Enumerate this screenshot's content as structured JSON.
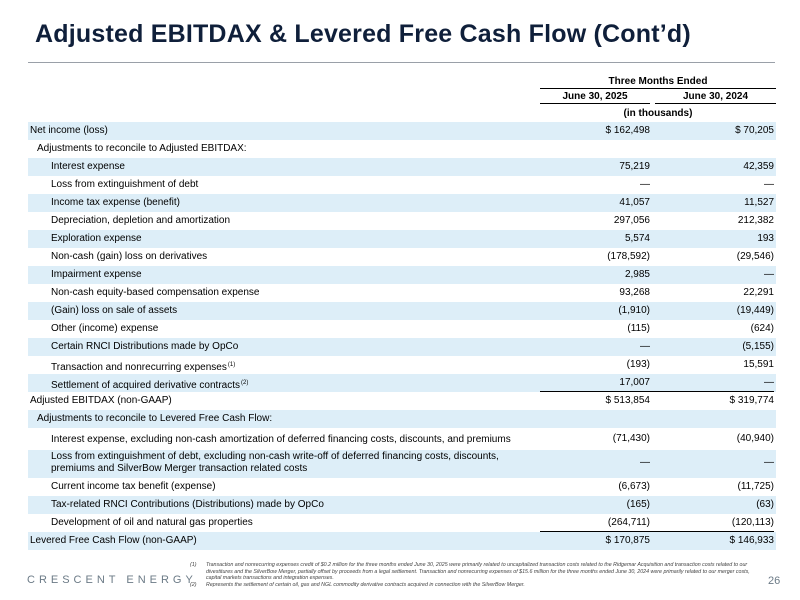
{
  "title": "Adjusted EBITDAX & Levered Free Cash Flow (Cont’d)",
  "header": {
    "period": "Three Months Ended",
    "col1": "June 30, 2025",
    "col2": "June 30, 2024",
    "units": "(in thousands)"
  },
  "rows": [
    {
      "label": "Net income (loss)",
      "v1": "$ 162,498",
      "v2": "$  70,205"
    },
    {
      "label": "Adjustments to reconcile to Adjusted EBITDAX:",
      "v1": "",
      "v2": ""
    },
    {
      "label": "Interest expense",
      "v1": "75,219",
      "v2": "42,359"
    },
    {
      "label": "Loss from extinguishment of debt",
      "v1": "—",
      "v2": "—"
    },
    {
      "label": "Income tax expense (benefit)",
      "v1": "41,057",
      "v2": "11,527"
    },
    {
      "label": "Depreciation, depletion and amortization",
      "v1": "297,056",
      "v2": "212,382"
    },
    {
      "label": "Exploration expense",
      "v1": "5,574",
      "v2": "193"
    },
    {
      "label": "Non-cash (gain) loss on derivatives",
      "v1": "(178,592)",
      "v2": "(29,546)"
    },
    {
      "label": "Impairment expense",
      "v1": "2,985",
      "v2": "—"
    },
    {
      "label": "Non-cash equity-based compensation expense",
      "v1": "93,268",
      "v2": "22,291"
    },
    {
      "label": "(Gain) loss on sale of assets",
      "v1": "(1,910)",
      "v2": "(19,449)"
    },
    {
      "label": "Other (income) expense",
      "v1": "(115)",
      "v2": "(624)"
    },
    {
      "label": "Certain RNCI Distributions made by OpCo",
      "v1": "—",
      "v2": "(5,155)"
    },
    {
      "label": "Transaction and nonrecurring expenses",
      "fn": "(1)",
      "v1": "(193)",
      "v2": "15,591"
    },
    {
      "label": "Settlement of acquired derivative contracts",
      "fn": "(2)",
      "v1": "17,007",
      "v2": "—"
    },
    {
      "label": "Adjusted EBITDAX (non-GAAP)",
      "v1": "$ 513,854",
      "v2": "$ 319,774"
    },
    {
      "label": "Adjustments to reconcile to Levered Free Cash Flow:",
      "v1": "",
      "v2": ""
    },
    {
      "label": "Interest expense, excluding non-cash amortization of deferred financing costs, discounts, and premiums",
      "v1": "(71,430)",
      "v2": "(40,940)"
    },
    {
      "label": "Loss from extinguishment of debt, excluding non-cash write-off of deferred financing costs, discounts, premiums and SilverBow Merger transaction related costs",
      "v1": "—",
      "v2": "—"
    },
    {
      "label": "Current income tax benefit (expense)",
      "v1": "(6,673)",
      "v2": "(11,725)"
    },
    {
      "label": "Tax-related RNCI Contributions (Distributions) made by OpCo",
      "v1": "(165)",
      "v2": "(63)"
    },
    {
      "label": "Development of oil and natural gas properties",
      "v1": "(264,711)",
      "v2": "(120,113)"
    },
    {
      "label": "Levered Free Cash Flow (non-GAAP)",
      "v1": "$ 170,875",
      "v2": "$ 146,933"
    }
  ],
  "footnotes": [
    {
      "num": "(1)",
      "text": "Transaction and nonrecurring expenses credit of $0.2 million for the three months ended June 30, 2025 were primarily related to uncapitalized transaction costs related to the Ridgemar Acquisition and transaction costs related to our divestitures and the SilverBow Merger, partially offset by proceeds from a legal settlement. Transaction and nonrecurring expenses of $15.6 million for the three months ended June 30, 2024 were primarily related to our merger costs, capital markets transactions and integration expenses."
    },
    {
      "num": "(2)",
      "text": "Represents the settlement of certain oil, gas and NGL commodity derivative contracts acquired in connection with the SilverBow Merger."
    }
  ],
  "brand": "CRESCENT ENERGY",
  "page_number": "26"
}
